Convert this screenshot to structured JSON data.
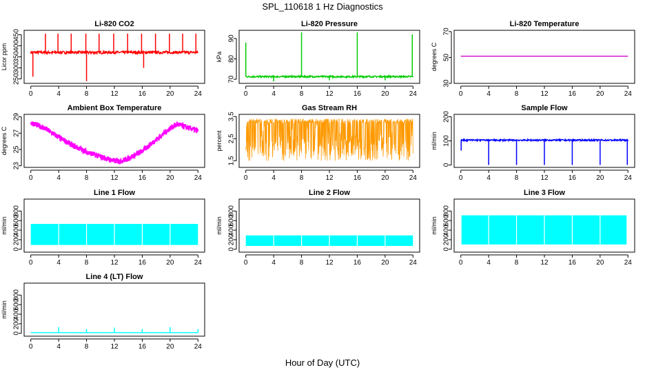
{
  "figure": {
    "title": "SPL_110618  1 Hz Diagnostics",
    "xlabel": "Hour of Day (UTC)"
  },
  "chart_data": [
    {
      "type": "line",
      "title": "Li-820 CO2",
      "ylabel": "Licor ppm",
      "color": "#ff0000",
      "xlim": [
        0,
        24
      ],
      "ylim": [
        230,
        470
      ],
      "xticks": [
        0,
        4,
        8,
        12,
        16,
        20,
        24
      ],
      "yticks": [
        250,
        300,
        350,
        400,
        450
      ],
      "baseline": 370,
      "noise": 6,
      "dense": false,
      "spikes": [
        {
          "x": 0.3,
          "y": 260
        },
        {
          "x": 2.1,
          "y": 455
        },
        {
          "x": 3.9,
          "y": 455
        },
        {
          "x": 5.8,
          "y": 455
        },
        {
          "x": 7.9,
          "y": 455
        },
        {
          "x": 8.0,
          "y": 240
        },
        {
          "x": 9.8,
          "y": 455
        },
        {
          "x": 11.9,
          "y": 455
        },
        {
          "x": 13.9,
          "y": 455
        },
        {
          "x": 15.9,
          "y": 455
        },
        {
          "x": 16.2,
          "y": 300
        },
        {
          "x": 17.9,
          "y": 455
        },
        {
          "x": 19.9,
          "y": 455
        },
        {
          "x": 21.8,
          "y": 455
        },
        {
          "x": 23.7,
          "y": 455
        }
      ]
    },
    {
      "type": "line",
      "title": "Li-820 Pressure",
      "ylabel": "kPa",
      "color": "#00cc00",
      "xlim": [
        0,
        24
      ],
      "ylim": [
        68,
        94
      ],
      "xticks": [
        0,
        4,
        8,
        12,
        16,
        20,
        24
      ],
      "yticks": [
        70,
        80,
        90
      ],
      "baseline": 71.3,
      "noise": 0.4,
      "dense": false,
      "spikes": [
        {
          "x": 0.0,
          "y": 88
        },
        {
          "x": 8.0,
          "y": 93
        },
        {
          "x": 16.0,
          "y": 93
        },
        {
          "x": 23.9,
          "y": 92
        },
        {
          "x": 4.0,
          "y": 69
        },
        {
          "x": 12.0,
          "y": 69.5
        },
        {
          "x": 20.0,
          "y": 69.5
        }
      ]
    },
    {
      "type": "line",
      "title": "Li-820 Temperature",
      "ylabel": "degrees C",
      "color": "#cc00cc",
      "xlim": [
        0,
        24
      ],
      "ylim": [
        30,
        71
      ],
      "xticks": [
        0,
        4,
        8,
        12,
        16,
        20,
        24
      ],
      "yticks": [
        30,
        50,
        70
      ],
      "baseline": 51,
      "noise": 0,
      "dense": false,
      "spikes": []
    },
    {
      "type": "line",
      "title": "Ambient Box Temperature",
      "ylabel": "degrees C",
      "color": "#ff00ff",
      "xlim": [
        0,
        24
      ],
      "ylim": [
        22.8,
        29.3
      ],
      "xticks": [
        0,
        4,
        8,
        12,
        16,
        20,
        24
      ],
      "yticks": [
        23,
        25,
        27,
        29
      ],
      "curve": [
        [
          0,
          28.3
        ],
        [
          2,
          27.6
        ],
        [
          4,
          26.5
        ],
        [
          6,
          25.5
        ],
        [
          8,
          24.7
        ],
        [
          10,
          24.1
        ],
        [
          12,
          23.6
        ],
        [
          13,
          23.6
        ],
        [
          14,
          23.9
        ],
        [
          16,
          24.8
        ],
        [
          18,
          26.2
        ],
        [
          20,
          27.6
        ],
        [
          21,
          28.1
        ],
        [
          22,
          27.8
        ],
        [
          24,
          27.3
        ]
      ],
      "noise": 0.35,
      "dense": true,
      "spikes": []
    },
    {
      "type": "line",
      "title": "Gas Stream RH",
      "ylabel": "percent",
      "color": "#ff9900",
      "xlim": [
        0,
        24
      ],
      "ylim": [
        1.2,
        3.6
      ],
      "xticks": [
        0,
        4,
        8,
        12,
        16,
        20,
        24
      ],
      "yticks": [
        1.5,
        2.5,
        3.5
      ],
      "band": [
        1.5,
        3.4
      ],
      "dense": true,
      "spikes": []
    },
    {
      "type": "line",
      "title": "Sample Flow",
      "ylabel": "ml/min",
      "color": "#0000ff",
      "xlim": [
        0,
        24
      ],
      "ylim": [
        -10,
        210
      ],
      "xticks": [
        0,
        4,
        8,
        12,
        16,
        20,
        24
      ],
      "yticks": [
        0,
        100,
        200
      ],
      "baseline": 103,
      "noise": 3,
      "dense": false,
      "spikes": [
        {
          "x": 0.05,
          "y": 60
        },
        {
          "x": 4.0,
          "y": 0
        },
        {
          "x": 8.0,
          "y": 0
        },
        {
          "x": 12.0,
          "y": 0
        },
        {
          "x": 16.0,
          "y": 0
        },
        {
          "x": 20.0,
          "y": 0
        },
        {
          "x": 23.9,
          "y": 0
        }
      ]
    },
    {
      "type": "area",
      "title": "Line 1 Flow",
      "ylabel": "ml/min",
      "color": "#00ffff",
      "xlim": [
        0,
        24
      ],
      "ylim": [
        -60,
        1050
      ],
      "xticks": [
        0,
        4,
        8,
        12,
        16,
        20,
        24
      ],
      "yticks": [
        0,
        200,
        400,
        600,
        800
      ],
      "band": [
        90,
        530
      ],
      "xrange": [
        0,
        24
      ],
      "gaps": [
        4,
        8,
        12,
        16,
        20
      ]
    },
    {
      "type": "area",
      "title": "Line 2 Flow",
      "ylabel": "ml/min",
      "color": "#00ffff",
      "xlim": [
        0,
        24
      ],
      "ylim": [
        -60,
        1050
      ],
      "xticks": [
        0,
        4,
        8,
        12,
        16,
        20,
        24
      ],
      "yticks": [
        0,
        200,
        400,
        600,
        800
      ],
      "band": [
        70,
        290
      ],
      "xrange": [
        0,
        24
      ],
      "gaps": [
        4,
        8,
        12,
        16,
        20
      ]
    },
    {
      "type": "area",
      "title": "Line 3 Flow",
      "ylabel": "ml/min",
      "color": "#00ffff",
      "xlim": [
        0,
        24
      ],
      "ylim": [
        -60,
        1050
      ],
      "xticks": [
        0,
        4,
        8,
        12,
        16,
        20,
        24
      ],
      "yticks": [
        0,
        200,
        400,
        600,
        800
      ],
      "band": [
        100,
        710
      ],
      "xrange": [
        0.1,
        23.8
      ],
      "gaps": [
        4,
        8,
        12,
        16,
        20
      ]
    },
    {
      "type": "line",
      "title": "Line 4 (LT) Flow",
      "ylabel": "ml/min",
      "color": "#00ffff",
      "xlim": [
        0,
        24
      ],
      "ylim": [
        -60,
        1050
      ],
      "xticks": [
        0,
        4,
        8,
        12,
        16,
        20,
        24
      ],
      "yticks": [
        0,
        200,
        400,
        600,
        800
      ],
      "baseline": 15,
      "noise": 2,
      "dense": false,
      "spikes": [
        {
          "x": 4.0,
          "y": 130
        },
        {
          "x": 8.0,
          "y": 90
        },
        {
          "x": 12.0,
          "y": 120
        },
        {
          "x": 16.0,
          "y": 90
        },
        {
          "x": 20.0,
          "y": 130
        },
        {
          "x": 24.0,
          "y": 90
        }
      ]
    }
  ]
}
